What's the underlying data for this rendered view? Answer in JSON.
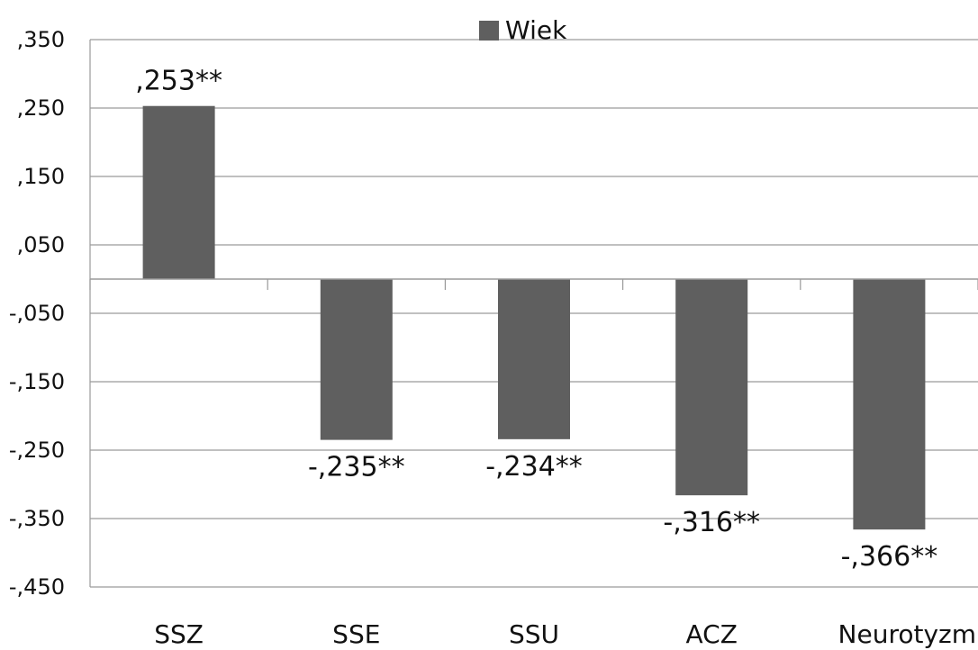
{
  "chart_data": {
    "type": "bar",
    "categories": [
      "SSZ",
      "SSE",
      "SSU",
      "ACZ",
      "Neurotyzm"
    ],
    "series": [
      {
        "name": "Wiek",
        "values": [
          0.253,
          -0.235,
          -0.234,
          -0.316,
          -0.366
        ],
        "labels": [
          ",253**",
          "-,235**",
          "-,234**",
          "-,316**",
          "-,366**"
        ],
        "color": "#5f5f5f"
      }
    ],
    "yticks": [
      {
        "value": 0.35,
        "label": ",350"
      },
      {
        "value": 0.25,
        "label": ",250"
      },
      {
        "value": 0.15,
        "label": ",150"
      },
      {
        "value": 0.05,
        "label": ",050"
      },
      {
        "value": -0.05,
        "label": "-,050"
      },
      {
        "value": -0.15,
        "label": "-,150"
      },
      {
        "value": -0.25,
        "label": "-,250"
      },
      {
        "value": -0.35,
        "label": "-,350"
      },
      {
        "value": -0.45,
        "label": "-,450"
      }
    ],
    "ylim": [
      -0.45,
      0.35
    ],
    "grid": true,
    "legend_position": "top-center",
    "title": "",
    "xlabel": "",
    "ylabel": ""
  }
}
